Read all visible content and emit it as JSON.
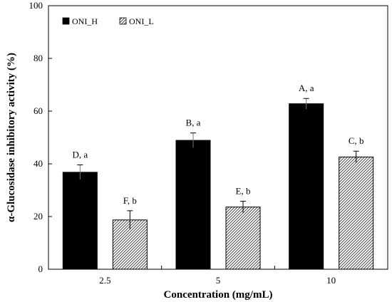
{
  "chart_data": {
    "type": "bar",
    "title": "",
    "xlabel": "Concentration (mg/mL)",
    "ylabel": "α-Glucosidase inhibitory activity (%)",
    "categories": [
      "2.5",
      "5",
      "10"
    ],
    "ylim": [
      0,
      100
    ],
    "yticks": [
      0,
      20,
      40,
      60,
      80,
      100
    ],
    "grid": false,
    "legend_position": "top-left",
    "series": [
      {
        "name": "ONI_H",
        "fill": "solid",
        "color": "#000000",
        "values": [
          36.8,
          48.9,
          62.8
        ],
        "errors": [
          2.8,
          2.8,
          2.0
        ],
        "labels": [
          "D, a",
          "B, a",
          "A, a"
        ]
      },
      {
        "name": "ONI_L",
        "fill": "hatched",
        "color": "#000000",
        "values": [
          18.7,
          23.6,
          42.6
        ],
        "errors": [
          3.5,
          2.2,
          2.2
        ],
        "labels": [
          "F, b",
          "E, b",
          "C, b"
        ]
      }
    ]
  }
}
